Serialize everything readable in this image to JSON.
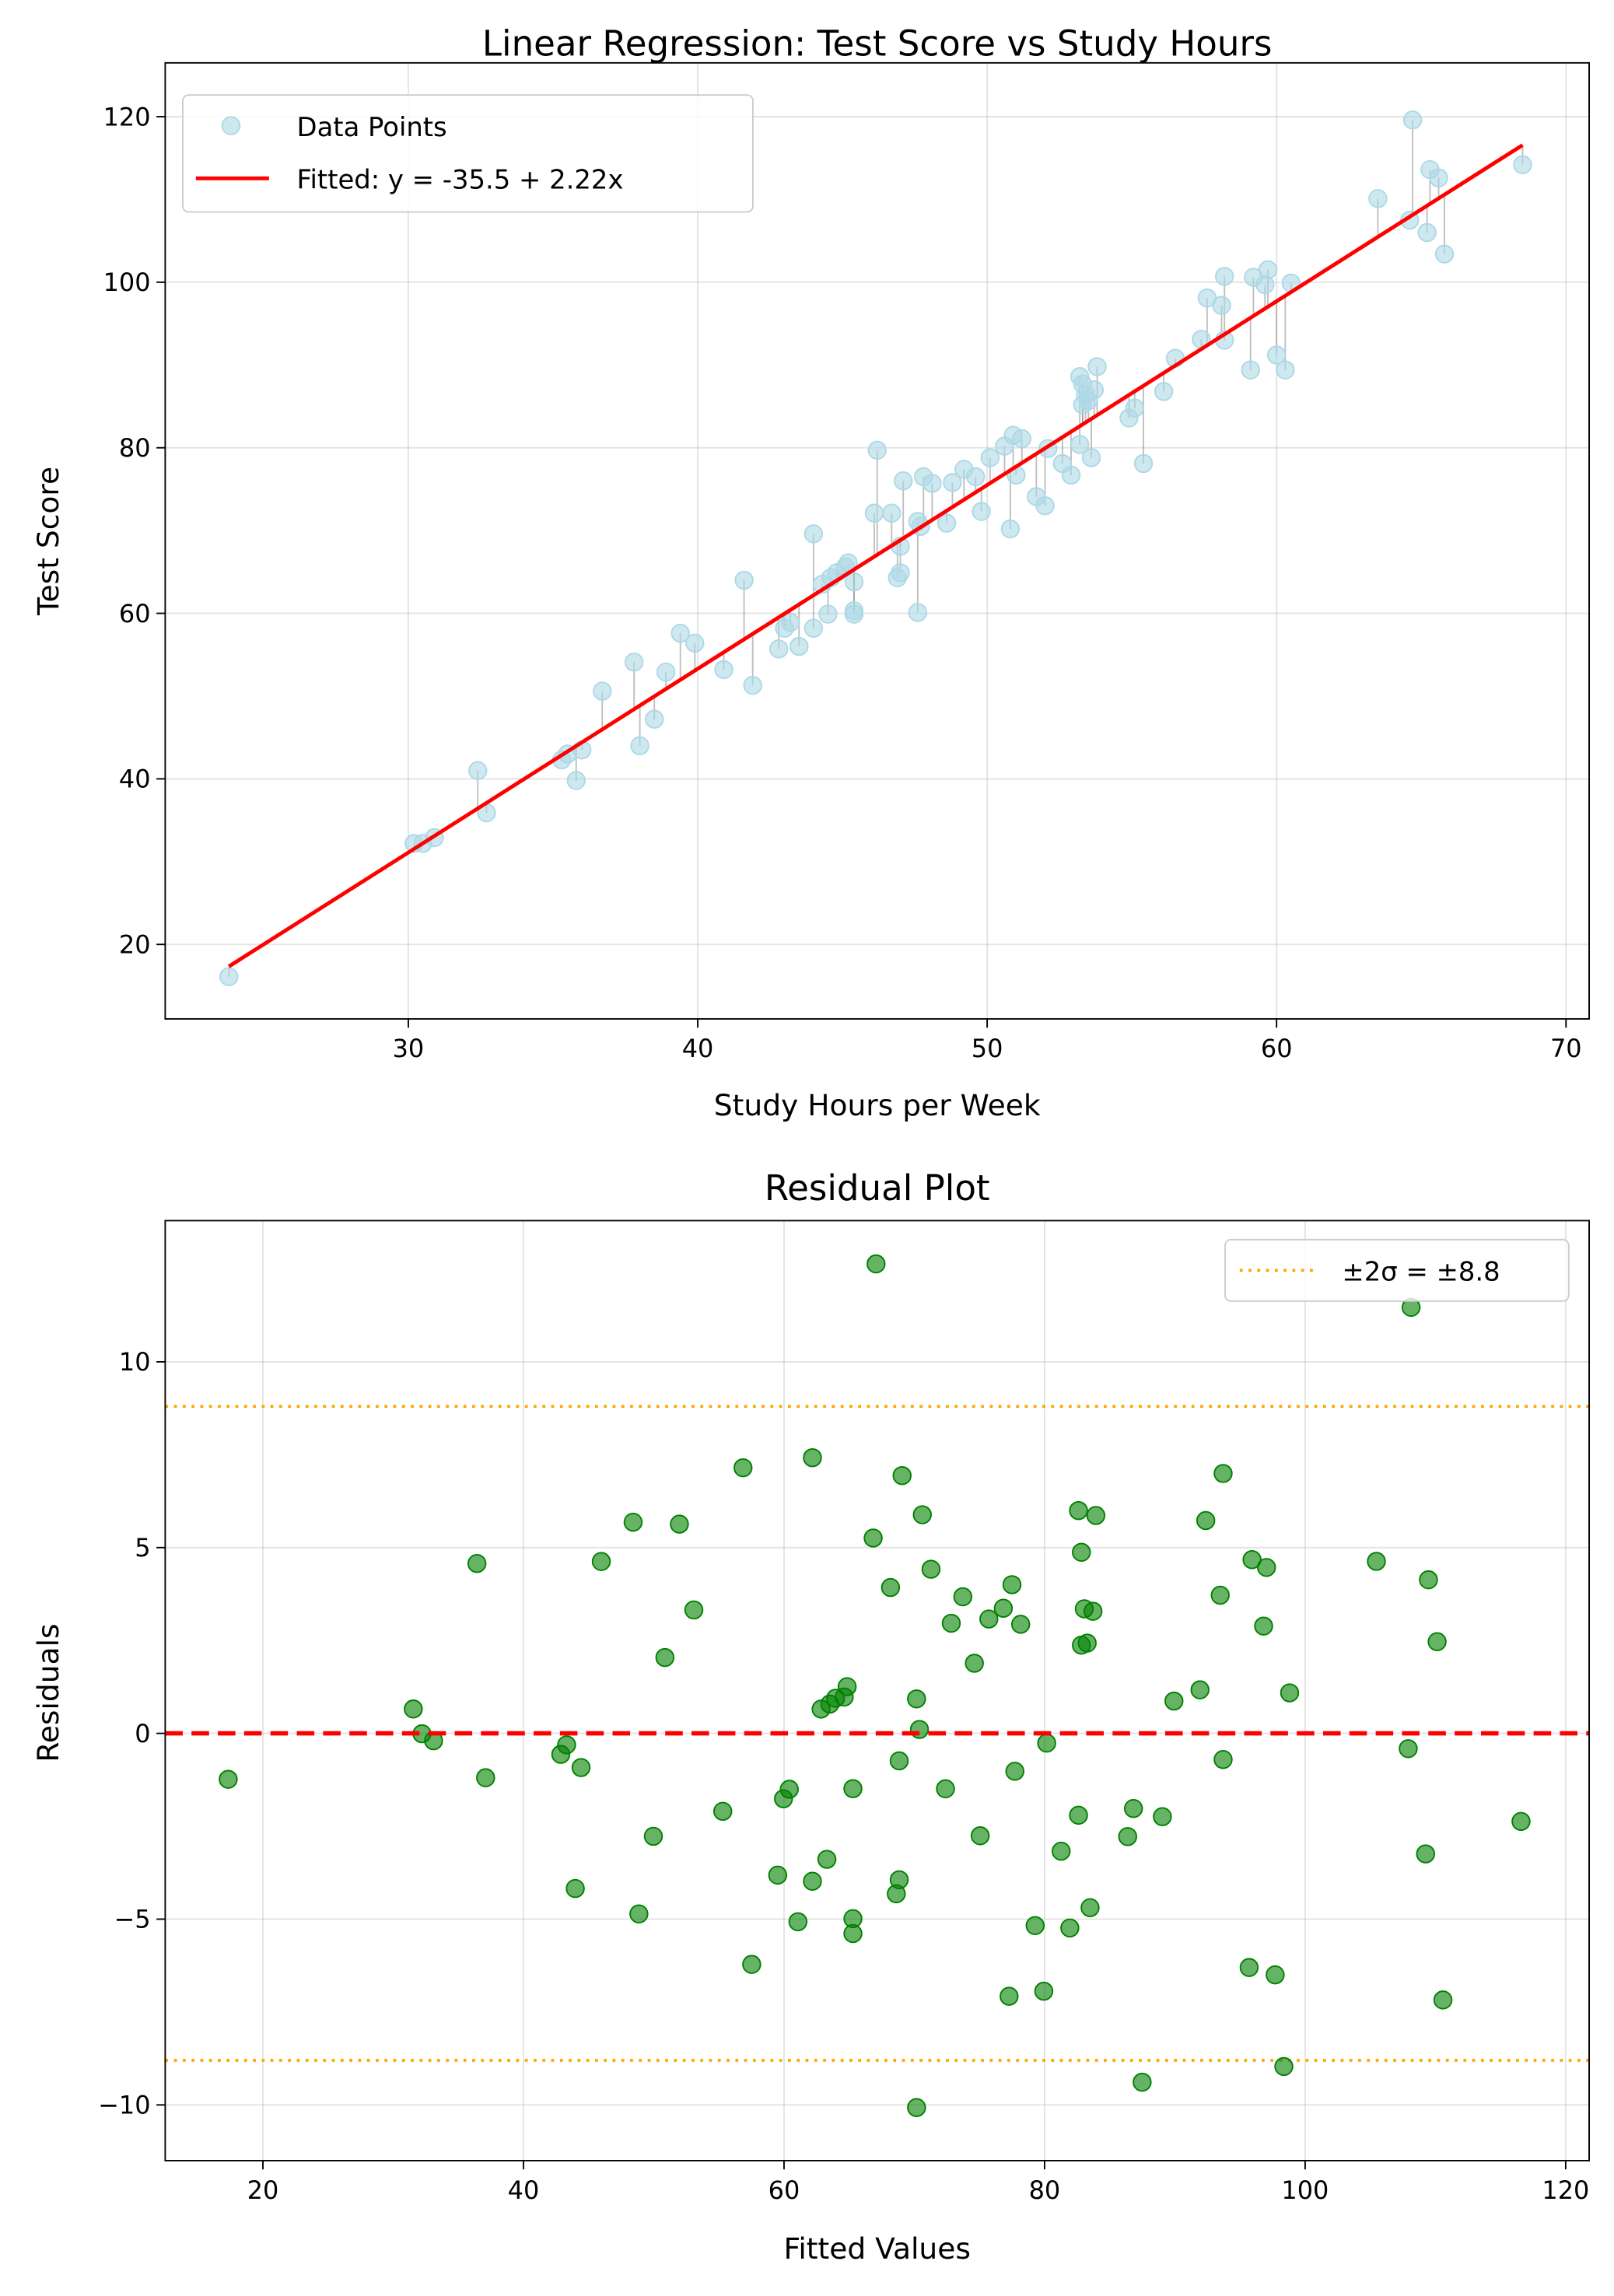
{
  "chart_data": [
    {
      "type": "scatter",
      "title": "Linear Regression: Test Score vs Study Hours",
      "xlabel": "Study Hours per Week",
      "ylabel": "Test Score",
      "xlim": [
        21.6,
        70.8
      ],
      "ylim": [
        11.0,
        126.5
      ],
      "xticks": [
        30,
        40,
        50,
        60,
        70
      ],
      "yticks": [
        20,
        40,
        60,
        80,
        100,
        120
      ],
      "grid": true,
      "legend_position": "top-left",
      "point_color": "#add8e6",
      "fit_color": "#ff0000",
      "fit": {
        "intercept": -35.5,
        "slope": 2.22
      },
      "series": [
        {
          "name": "Data Points",
          "type": "scatter"
        },
        {
          "name": "Fitted: y = -35.5 + 2.22x",
          "type": "line"
        }
      ],
      "points": [
        [
          23.8,
          16.1
        ],
        [
          30.2,
          32.2
        ],
        [
          30.5,
          32.2
        ],
        [
          30.9,
          32.9
        ],
        [
          32.4,
          41.0
        ],
        [
          32.7,
          35.9
        ],
        [
          35.3,
          42.3
        ],
        [
          35.5,
          43.0
        ],
        [
          35.8,
          39.8
        ],
        [
          36.0,
          43.5
        ],
        [
          36.7,
          50.6
        ],
        [
          37.8,
          54.1
        ],
        [
          38.0,
          44.0
        ],
        [
          38.5,
          47.2
        ],
        [
          38.9,
          52.9
        ],
        [
          39.4,
          57.6
        ],
        [
          39.9,
          56.4
        ],
        [
          40.9,
          53.2
        ],
        [
          41.6,
          64.0
        ],
        [
          41.9,
          51.3
        ],
        [
          42.8,
          55.7
        ],
        [
          43.0,
          58.2
        ],
        [
          43.2,
          58.9
        ],
        [
          43.5,
          56.0
        ],
        [
          44.0,
          58.2
        ],
        [
          44.0,
          69.6
        ],
        [
          44.3,
          63.5
        ],
        [
          44.5,
          59.9
        ],
        [
          44.6,
          64.3
        ],
        [
          44.8,
          64.9
        ],
        [
          45.1,
          65.6
        ],
        [
          45.2,
          66.1
        ],
        [
          45.4,
          60.3
        ],
        [
          45.4,
          59.9
        ],
        [
          45.4,
          63.8
        ],
        [
          46.1,
          72.1
        ],
        [
          46.2,
          79.7
        ],
        [
          46.7,
          72.1
        ],
        [
          46.9,
          64.3
        ],
        [
          47.0,
          64.9
        ],
        [
          47.0,
          68.1
        ],
        [
          47.1,
          76.0
        ],
        [
          47.6,
          60.1
        ],
        [
          47.6,
          71.1
        ],
        [
          47.7,
          70.5
        ],
        [
          47.8,
          76.5
        ],
        [
          48.1,
          75.7
        ],
        [
          48.6,
          70.9
        ],
        [
          48.8,
          75.8
        ],
        [
          49.2,
          77.4
        ],
        [
          49.6,
          76.5
        ],
        [
          49.8,
          72.3
        ],
        [
          50.1,
          78.8
        ],
        [
          50.6,
          80.2
        ],
        [
          50.8,
          70.2
        ],
        [
          50.9,
          81.5
        ],
        [
          51.0,
          76.7
        ],
        [
          51.2,
          81.1
        ],
        [
          51.7,
          74.1
        ],
        [
          52.0,
          73.0
        ],
        [
          52.1,
          79.9
        ],
        [
          52.6,
          78.1
        ],
        [
          52.9,
          76.7
        ],
        [
          53.2,
          80.4
        ],
        [
          53.2,
          88.6
        ],
        [
          53.3,
          87.7
        ],
        [
          53.4,
          86.4
        ],
        [
          53.3,
          85.2
        ],
        [
          53.5,
          85.7
        ],
        [
          53.7,
          87.0
        ],
        [
          53.6,
          78.8
        ],
        [
          53.8,
          89.8
        ],
        [
          54.9,
          83.6
        ],
        [
          55.1,
          84.8
        ],
        [
          55.4,
          78.1
        ],
        [
          56.1,
          86.8
        ],
        [
          56.5,
          90.8
        ],
        [
          57.4,
          93.1
        ],
        [
          57.6,
          98.1
        ],
        [
          58.1,
          97.2
        ],
        [
          58.2,
          93.0
        ],
        [
          58.2,
          100.7
        ],
        [
          59.1,
          89.4
        ],
        [
          59.2,
          100.6
        ],
        [
          59.6,
          99.7
        ],
        [
          59.7,
          101.5
        ],
        [
          60.0,
          91.2
        ],
        [
          60.3,
          89.4
        ],
        [
          60.5,
          99.9
        ],
        [
          63.5,
          110.1
        ],
        [
          64.6,
          107.5
        ],
        [
          64.7,
          119.6
        ],
        [
          65.2,
          106.0
        ],
        [
          65.3,
          113.6
        ],
        [
          65.6,
          112.6
        ],
        [
          65.8,
          103.4
        ],
        [
          68.5,
          114.2
        ]
      ]
    },
    {
      "type": "scatter",
      "title": "Residual Plot",
      "xlabel": "Fitted Values",
      "ylabel": "Residuals",
      "xlim": [
        12.5,
        121.8
      ],
      "ylim": [
        -11.5,
        13.8
      ],
      "xticks": [
        20,
        40,
        60,
        80,
        100,
        120
      ],
      "yticks": [
        -10,
        -5,
        0,
        5,
        10
      ],
      "ytick_labels": [
        "−10",
        "−5",
        "0",
        "5",
        "10"
      ],
      "grid": true,
      "legend_position": "top-right",
      "point_color": "#008000",
      "zero_line_color": "#ff0000",
      "band_color": "#ffa500",
      "band": 8.8,
      "series": [
        {
          "name": "±2σ = ±8.8",
          "type": "line"
        }
      ],
      "note": ""
    }
  ]
}
